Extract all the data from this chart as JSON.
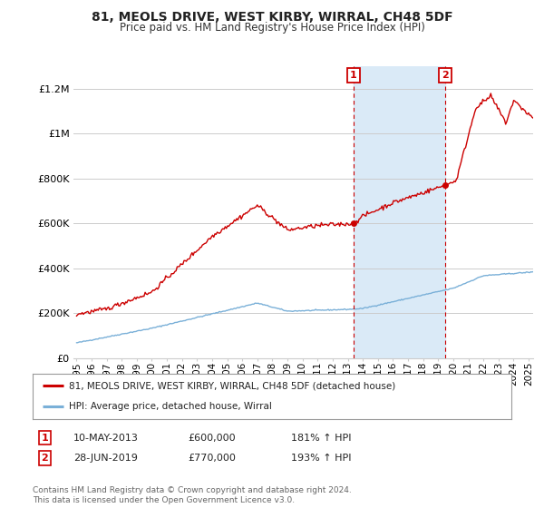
{
  "title": "81, MEOLS DRIVE, WEST KIRBY, WIRRAL, CH48 5DF",
  "subtitle": "Price paid vs. HM Land Registry's House Price Index (HPI)",
  "background_color": "#ffffff",
  "plot_bg_color": "#ffffff",
  "shaded_region_color": "#daeaf7",
  "grid_color": "#cccccc",
  "hpi_line_color": "#7ab0d8",
  "price_line_color": "#cc0000",
  "marker_box_color": "#cc0000",
  "ylim": [
    0,
    1300000
  ],
  "yticks": [
    0,
    200000,
    400000,
    600000,
    800000,
    1000000,
    1200000
  ],
  "ytick_labels": [
    "£0",
    "£200K",
    "£400K",
    "£600K",
    "£800K",
    "£1M",
    "£1.2M"
  ],
  "xmin_year": 1995.0,
  "xmax_year": 2025.3,
  "sale1_year": 2013.37,
  "sale1_price": 600000,
  "sale1_label": "1",
  "sale2_year": 2019.49,
  "sale2_price": 770000,
  "sale2_label": "2",
  "legend_line1": "81, MEOLS DRIVE, WEST KIRBY, WIRRAL, CH48 5DF (detached house)",
  "legend_line2": "HPI: Average price, detached house, Wirral",
  "table_row1": [
    "1",
    "10-MAY-2013",
    "£600,000",
    "181% ↑ HPI"
  ],
  "table_row2": [
    "2",
    "28-JUN-2019",
    "£770,000",
    "193% ↑ HPI"
  ],
  "footnote": "Contains HM Land Registry data © Crown copyright and database right 2024.\nThis data is licensed under the Open Government Licence v3.0.",
  "xtick_years": [
    1995,
    1996,
    1997,
    1998,
    1999,
    2000,
    2001,
    2002,
    2003,
    2004,
    2005,
    2006,
    2007,
    2008,
    2009,
    2010,
    2011,
    2012,
    2013,
    2014,
    2015,
    2016,
    2017,
    2018,
    2019,
    2020,
    2021,
    2022,
    2023,
    2024,
    2025
  ]
}
